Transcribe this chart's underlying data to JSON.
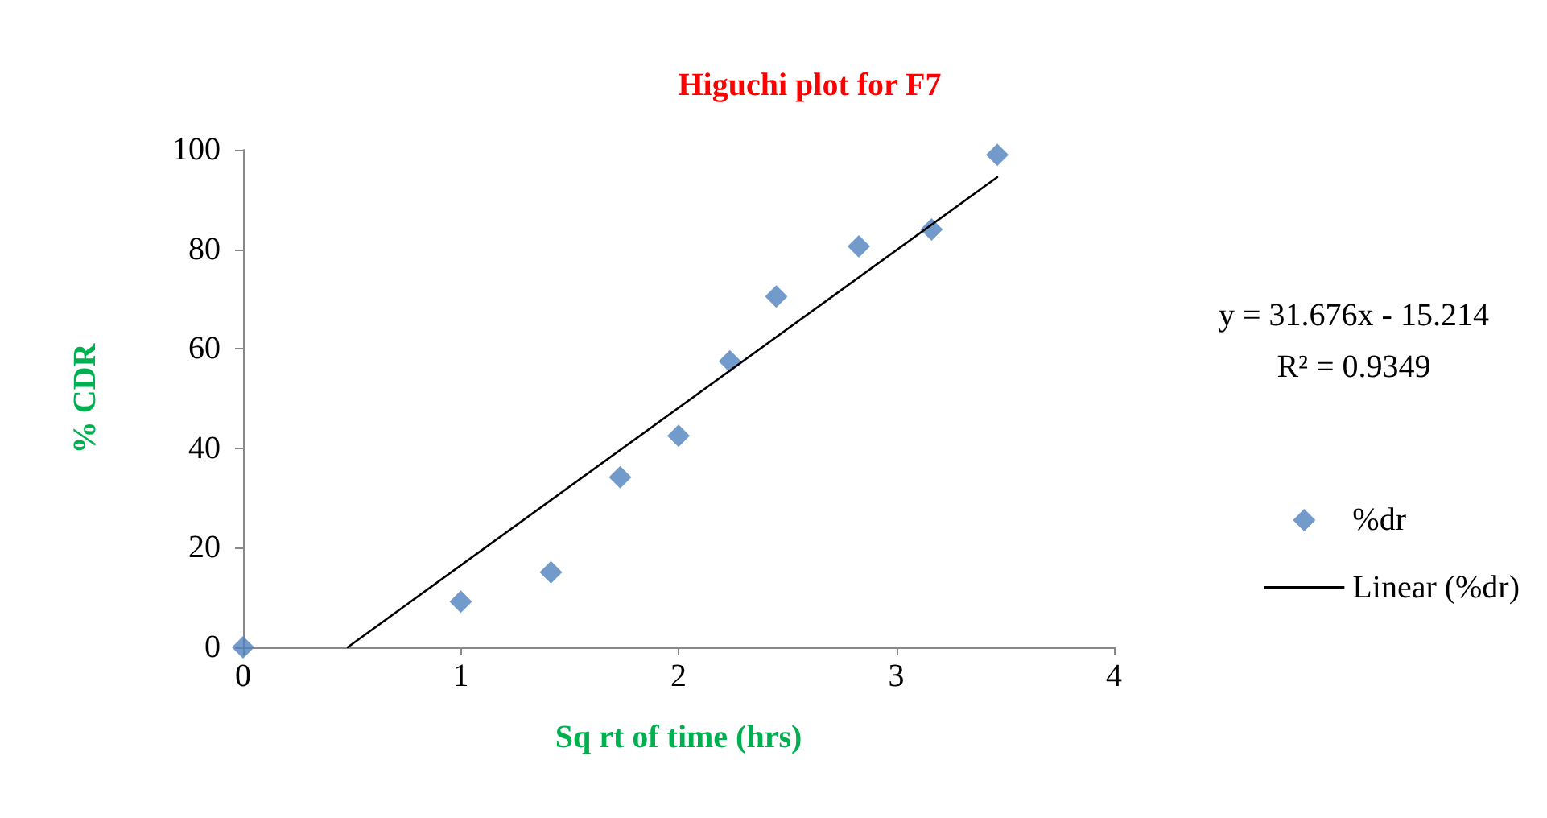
{
  "chart_data": {
    "type": "scatter",
    "title": "Higuchi plot for F7",
    "xlabel": "Sq rt of time (hrs)",
    "ylabel": "% CDR",
    "x": [
      0,
      1,
      1.414,
      1.732,
      2,
      2.236,
      2.449,
      2.828,
      3.162,
      3.464
    ],
    "series": [
      {
        "name": "%dr",
        "color": "#4f81bd",
        "marker": "diamond",
        "values": [
          0,
          9.2,
          15.1,
          34.2,
          42.5,
          57.5,
          70.5,
          80.6,
          84,
          99
        ]
      },
      {
        "name": "Linear (%dr)",
        "type": "line",
        "color": "#000000",
        "x": [
          0.4803,
          3.464
        ],
        "values": [
          0,
          94.5
        ]
      }
    ],
    "xlim": [
      0,
      4
    ],
    "xticks": [
      0,
      1,
      2,
      3,
      4
    ],
    "ylim": [
      0,
      100
    ],
    "yticks": [
      0,
      20,
      40,
      60,
      80,
      100
    ],
    "annotations": [
      "y = 31.676x - 15.214",
      "R² = 0.9349"
    ],
    "legend": "right",
    "grid": false,
    "line_style": "solid"
  }
}
